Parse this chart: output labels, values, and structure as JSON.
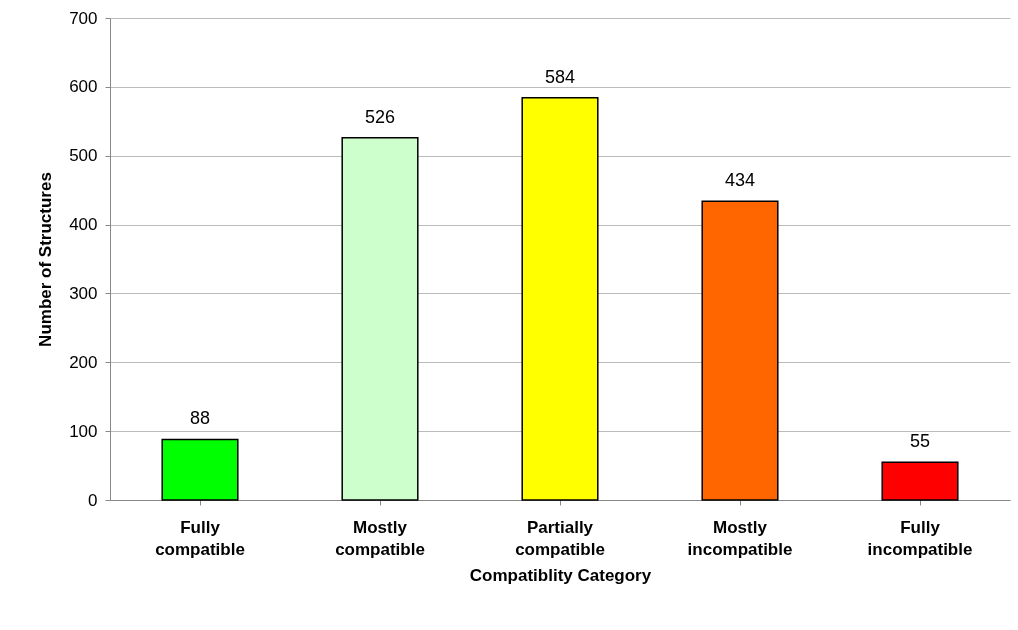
{
  "chart_data": {
    "type": "bar",
    "xlabel": "Compatiblity Category",
    "ylabel": "Number of Structures",
    "categories": [
      "Fully compatible",
      "Mostly compatible",
      "Partially compatible",
      "Mostly incompatible",
      "Fully incompatible"
    ],
    "values": [
      88,
      526,
      584,
      434,
      55
    ],
    "colors": [
      "#00ff00",
      "#ccffcc",
      "#ffff00",
      "#ff6600",
      "#ff0000"
    ],
    "ylim": [
      0,
      700
    ],
    "yticks": [
      0,
      100,
      200,
      300,
      400,
      500,
      600,
      700
    ],
    "grid": "y",
    "data_labels": true
  }
}
